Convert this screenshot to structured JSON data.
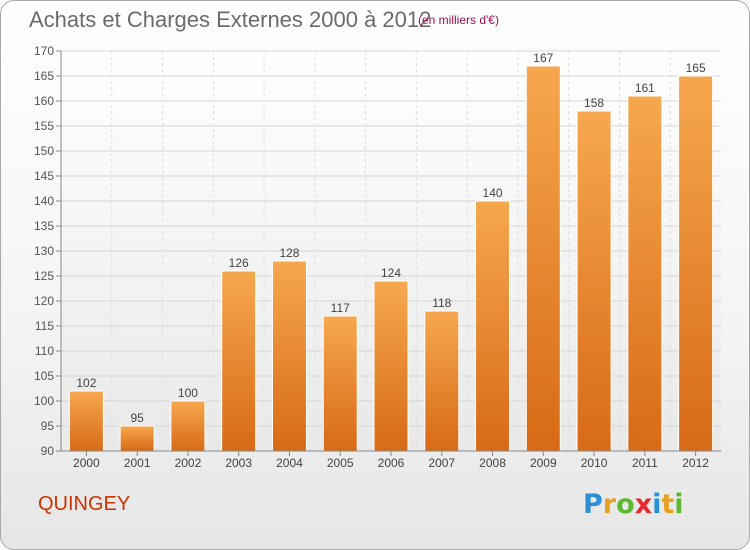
{
  "title": "Achats et Charges Externes 2000 à 2012",
  "subtitle": "(en milliers d'€)",
  "commune": "QUINGEY",
  "logo": {
    "letters": [
      "P",
      "r",
      "o",
      "x",
      "i",
      "t",
      "i"
    ],
    "colors": [
      "#2a8fd6",
      "#e8a020",
      "#5cb82e",
      "#e8282e",
      "#2a8fd6",
      "#e8a020",
      "#5cb82e"
    ]
  },
  "colors": {
    "bar_light": "#f6a84e",
    "bar_dark": "#d86a16",
    "title": "#6b6b6b",
    "subtitle": "#9a1050",
    "commune": "#cc3300"
  },
  "chart_data": {
    "type": "bar",
    "categories": [
      "2000",
      "2001",
      "2002",
      "2003",
      "2004",
      "2005",
      "2006",
      "2007",
      "2008",
      "2009",
      "2010",
      "2011",
      "2012"
    ],
    "values": [
      102,
      95,
      100,
      126,
      128,
      117,
      124,
      118,
      140,
      167,
      158,
      161,
      165
    ],
    "ylim": [
      90,
      170
    ],
    "yticks": [
      90,
      95,
      100,
      105,
      110,
      115,
      120,
      125,
      130,
      135,
      140,
      145,
      150,
      155,
      160,
      165,
      170
    ],
    "grid": true,
    "legend": "none"
  }
}
